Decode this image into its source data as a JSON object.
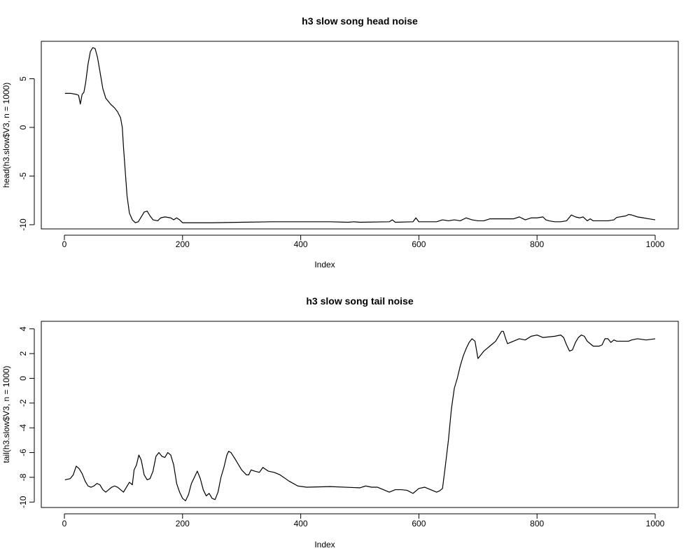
{
  "chart_data": [
    {
      "type": "line",
      "title": "h3 slow song head noise",
      "xlabel": "Index",
      "ylabel": "head(h3.slow$V3, n = 1000)",
      "xlim": [
        0,
        1000
      ],
      "ylim": [
        -10,
        8.2
      ],
      "x_ticks": [
        0,
        200,
        400,
        600,
        800,
        1000
      ],
      "y_ticks": [
        -10,
        -5,
        0,
        5
      ],
      "grid": false,
      "series": [
        {
          "color": "#000000",
          "points": [
            [
              1,
              3.5
            ],
            [
              10,
              3.5
            ],
            [
              20,
              3.4
            ],
            [
              24,
              3.3
            ],
            [
              27,
              2.4
            ],
            [
              30,
              3.4
            ],
            [
              33,
              3.6
            ],
            [
              36,
              4.6
            ],
            [
              40,
              6.5
            ],
            [
              44,
              7.8
            ],
            [
              48,
              8.2
            ],
            [
              52,
              8.1
            ],
            [
              56,
              7.2
            ],
            [
              60,
              5.8
            ],
            [
              65,
              4.0
            ],
            [
              70,
              3.0
            ],
            [
              78,
              2.4
            ],
            [
              85,
              2.0
            ],
            [
              90,
              1.6
            ],
            [
              95,
              1.0
            ],
            [
              98,
              0.0
            ],
            [
              100,
              -2.0
            ],
            [
              103,
              -4.5
            ],
            [
              106,
              -7.0
            ],
            [
              110,
              -8.8
            ],
            [
              115,
              -9.5
            ],
            [
              120,
              -9.8
            ],
            [
              125,
              -9.7
            ],
            [
              130,
              -9.2
            ],
            [
              135,
              -8.7
            ],
            [
              140,
              -8.6
            ],
            [
              145,
              -9.1
            ],
            [
              150,
              -9.5
            ],
            [
              158,
              -9.6
            ],
            [
              163,
              -9.3
            ],
            [
              170,
              -9.2
            ],
            [
              180,
              -9.3
            ],
            [
              185,
              -9.5
            ],
            [
              190,
              -9.3
            ],
            [
              195,
              -9.5
            ],
            [
              200,
              -9.8
            ],
            [
              250,
              -9.8
            ],
            [
              300,
              -9.75
            ],
            [
              350,
              -9.7
            ],
            [
              400,
              -9.7
            ],
            [
              450,
              -9.7
            ],
            [
              480,
              -9.75
            ],
            [
              490,
              -9.7
            ],
            [
              500,
              -9.75
            ],
            [
              550,
              -9.7
            ],
            [
              555,
              -9.5
            ],
            [
              560,
              -9.75
            ],
            [
              590,
              -9.7
            ],
            [
              595,
              -9.3
            ],
            [
              600,
              -9.7
            ],
            [
              630,
              -9.7
            ],
            [
              640,
              -9.5
            ],
            [
              650,
              -9.6
            ],
            [
              660,
              -9.5
            ],
            [
              670,
              -9.6
            ],
            [
              680,
              -9.3
            ],
            [
              690,
              -9.5
            ],
            [
              700,
              -9.6
            ],
            [
              710,
              -9.6
            ],
            [
              720,
              -9.4
            ],
            [
              740,
              -9.4
            ],
            [
              760,
              -9.4
            ],
            [
              770,
              -9.2
            ],
            [
              780,
              -9.5
            ],
            [
              790,
              -9.3
            ],
            [
              800,
              -9.3
            ],
            [
              810,
              -9.2
            ],
            [
              815,
              -9.5
            ],
            [
              820,
              -9.6
            ],
            [
              830,
              -9.7
            ],
            [
              840,
              -9.7
            ],
            [
              850,
              -9.6
            ],
            [
              858,
              -9.0
            ],
            [
              865,
              -9.2
            ],
            [
              872,
              -9.3
            ],
            [
              878,
              -9.2
            ],
            [
              885,
              -9.6
            ],
            [
              890,
              -9.4
            ],
            [
              895,
              -9.6
            ],
            [
              910,
              -9.6
            ],
            [
              920,
              -9.6
            ],
            [
              930,
              -9.5
            ],
            [
              935,
              -9.25
            ],
            [
              950,
              -9.1
            ],
            [
              955,
              -8.95
            ],
            [
              960,
              -9.0
            ],
            [
              970,
              -9.2
            ],
            [
              980,
              -9.3
            ],
            [
              990,
              -9.4
            ],
            [
              1000,
              -9.5
            ]
          ]
        }
      ]
    },
    {
      "type": "line",
      "title": "h3 slow song tail noise",
      "xlabel": "Index",
      "ylabel": "tail(h3.slow$V3, n = 1000)",
      "xlim": [
        0,
        1000
      ],
      "ylim": [
        -10.1,
        4.1
      ],
      "x_ticks": [
        0,
        200,
        400,
        600,
        800,
        1000
      ],
      "y_ticks": [
        -10,
        -8,
        -6,
        -4,
        -2,
        0,
        2,
        4
      ],
      "grid": false,
      "series": [
        {
          "color": "#000000",
          "points": [
            [
              1,
              -8.2
            ],
            [
              10,
              -8.1
            ],
            [
              15,
              -7.8
            ],
            [
              20,
              -7.1
            ],
            [
              25,
              -7.3
            ],
            [
              30,
              -7.7
            ],
            [
              35,
              -8.3
            ],
            [
              40,
              -8.7
            ],
            [
              45,
              -8.8
            ],
            [
              50,
              -8.7
            ],
            [
              55,
              -8.5
            ],
            [
              60,
              -8.6
            ],
            [
              65,
              -9.0
            ],
            [
              70,
              -9.2
            ],
            [
              75,
              -9.0
            ],
            [
              80,
              -8.8
            ],
            [
              85,
              -8.7
            ],
            [
              90,
              -8.8
            ],
            [
              95,
              -9.0
            ],
            [
              100,
              -9.2
            ],
            [
              105,
              -8.8
            ],
            [
              110,
              -8.4
            ],
            [
              115,
              -8.6
            ],
            [
              118,
              -7.4
            ],
            [
              122,
              -7.0
            ],
            [
              126,
              -6.2
            ],
            [
              130,
              -6.6
            ],
            [
              135,
              -7.8
            ],
            [
              140,
              -8.2
            ],
            [
              145,
              -8.1
            ],
            [
              150,
              -7.5
            ],
            [
              155,
              -6.3
            ],
            [
              160,
              -6.0
            ],
            [
              165,
              -6.3
            ],
            [
              170,
              -6.4
            ],
            [
              175,
              -6.0
            ],
            [
              180,
              -6.2
            ],
            [
              185,
              -7.0
            ],
            [
              190,
              -8.5
            ],
            [
              195,
              -9.2
            ],
            [
              200,
              -9.7
            ],
            [
              205,
              -9.9
            ],
            [
              210,
              -9.4
            ],
            [
              215,
              -8.5
            ],
            [
              220,
              -8.0
            ],
            [
              225,
              -7.5
            ],
            [
              230,
              -8.1
            ],
            [
              235,
              -9.0
            ],
            [
              240,
              -9.5
            ],
            [
              245,
              -9.3
            ],
            [
              250,
              -9.7
            ],
            [
              255,
              -9.8
            ],
            [
              260,
              -9.2
            ],
            [
              265,
              -8.0
            ],
            [
              270,
              -7.2
            ],
            [
              275,
              -6.2
            ],
            [
              278,
              -5.9
            ],
            [
              282,
              -6.0
            ],
            [
              286,
              -6.3
            ],
            [
              290,
              -6.6
            ],
            [
              300,
              -7.4
            ],
            [
              308,
              -7.8
            ],
            [
              312,
              -7.8
            ],
            [
              316,
              -7.4
            ],
            [
              322,
              -7.5
            ],
            [
              330,
              -7.6
            ],
            [
              336,
              -7.2
            ],
            [
              345,
              -7.5
            ],
            [
              355,
              -7.6
            ],
            [
              365,
              -7.8
            ],
            [
              380,
              -8.3
            ],
            [
              395,
              -8.7
            ],
            [
              410,
              -8.8
            ],
            [
              450,
              -8.75
            ],
            [
              500,
              -8.85
            ],
            [
              510,
              -8.7
            ],
            [
              520,
              -8.8
            ],
            [
              530,
              -8.8
            ],
            [
              540,
              -9.0
            ],
            [
              550,
              -9.2
            ],
            [
              560,
              -9.0
            ],
            [
              570,
              -9.0
            ],
            [
              580,
              -9.05
            ],
            [
              590,
              -9.3
            ],
            [
              600,
              -8.9
            ],
            [
              610,
              -8.8
            ],
            [
              620,
              -9.0
            ],
            [
              630,
              -9.2
            ],
            [
              635,
              -9.1
            ],
            [
              640,
              -8.9
            ],
            [
              645,
              -7.0
            ],
            [
              650,
              -5.0
            ],
            [
              655,
              -2.5
            ],
            [
              660,
              -0.8
            ],
            [
              665,
              0.0
            ],
            [
              670,
              1.0
            ],
            [
              675,
              1.8
            ],
            [
              680,
              2.4
            ],
            [
              685,
              2.9
            ],
            [
              690,
              3.2
            ],
            [
              695,
              3.0
            ],
            [
              700,
              1.6
            ],
            [
              705,
              1.9
            ],
            [
              710,
              2.2
            ],
            [
              715,
              2.4
            ],
            [
              720,
              2.6
            ],
            [
              725,
              2.8
            ],
            [
              730,
              3.0
            ],
            [
              735,
              3.4
            ],
            [
              740,
              3.8
            ],
            [
              743,
              3.8
            ],
            [
              747,
              3.2
            ],
            [
              750,
              2.8
            ],
            [
              760,
              3.0
            ],
            [
              770,
              3.2
            ],
            [
              780,
              3.1
            ],
            [
              790,
              3.4
            ],
            [
              800,
              3.5
            ],
            [
              810,
              3.3
            ],
            [
              820,
              3.35
            ],
            [
              830,
              3.4
            ],
            [
              840,
              3.5
            ],
            [
              845,
              3.3
            ],
            [
              850,
              2.7
            ],
            [
              855,
              2.2
            ],
            [
              860,
              2.3
            ],
            [
              865,
              2.9
            ],
            [
              870,
              3.3
            ],
            [
              875,
              3.5
            ],
            [
              880,
              3.4
            ],
            [
              885,
              3.0
            ],
            [
              890,
              2.8
            ],
            [
              895,
              2.6
            ],
            [
              900,
              2.6
            ],
            [
              905,
              2.6
            ],
            [
              910,
              2.7
            ],
            [
              915,
              3.2
            ],
            [
              920,
              3.2
            ],
            [
              925,
              2.9
            ],
            [
              930,
              3.1
            ],
            [
              935,
              3.0
            ],
            [
              945,
              3.0
            ],
            [
              955,
              3.0
            ],
            [
              960,
              3.1
            ],
            [
              970,
              3.2
            ],
            [
              985,
              3.1
            ],
            [
              1000,
              3.2
            ]
          ]
        }
      ]
    }
  ]
}
